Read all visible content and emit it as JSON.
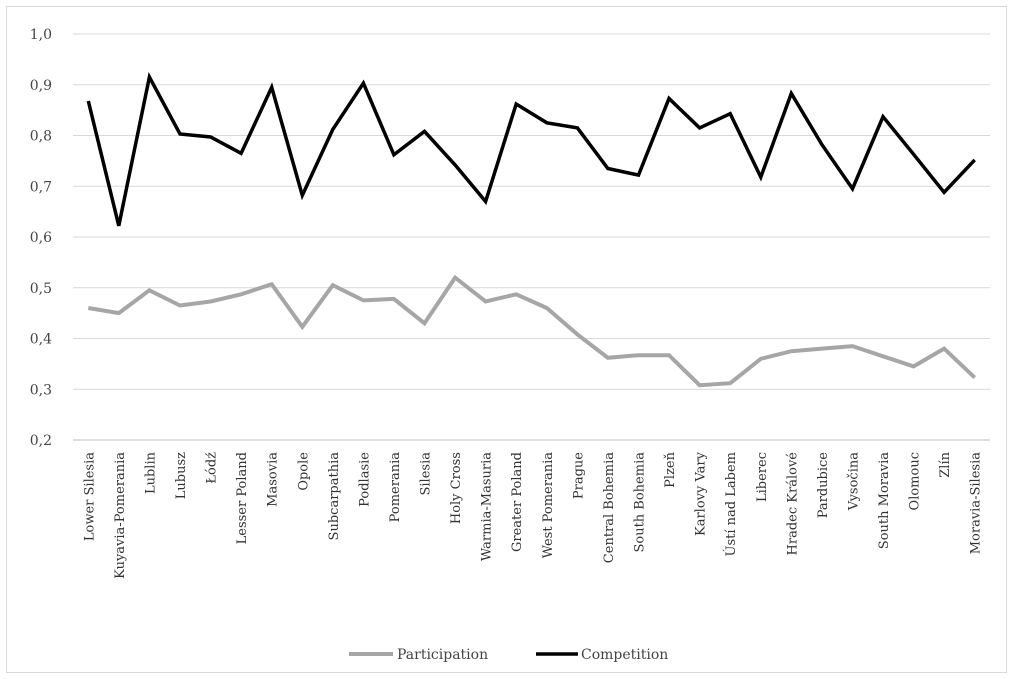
{
  "chart_data": {
    "type": "line",
    "title": "",
    "xlabel": "",
    "ylabel": "",
    "ylim": [
      0.2,
      1.0
    ],
    "yticks": [
      "0,2",
      "0,3",
      "0,4",
      "0,5",
      "0,6",
      "0,7",
      "0,8",
      "0,9",
      "1,0"
    ],
    "ytick_values": [
      0.2,
      0.3,
      0.4,
      0.5,
      0.6,
      0.7,
      0.8,
      0.9,
      1.0
    ],
    "grid": true,
    "legend_position": "bottom",
    "categories": [
      "Lower Silesia",
      "Kuyavia-Pomerania",
      "Lublin",
      "Lubusz",
      "Łódź",
      "Lesser Poland",
      "Masovia",
      "Opole",
      "Subcarpathia",
      "Podlasie",
      "Pomerania",
      "Silesia",
      "Holy Cross",
      "Warmia-Masuria",
      "Greater Poland",
      "West Pomerania",
      "Prague",
      "Central Bohemia",
      "South Bohemia",
      "Plzeň",
      "Karlovy Vary",
      "Ústí nad Labem",
      "Liberec",
      "Hradec Králové",
      "Pardubice",
      "Vysočina",
      "South Moravia",
      "Olomouc",
      "Zlín",
      "Moravia-Silesia"
    ],
    "series": [
      {
        "name": "Participation",
        "color": "#a6a6a6",
        "values": [
          0.46,
          0.45,
          0.495,
          0.465,
          0.473,
          0.487,
          0.507,
          0.423,
          0.505,
          0.475,
          0.478,
          0.43,
          0.52,
          0.473,
          0.487,
          0.46,
          0.408,
          0.362,
          0.367,
          0.367,
          0.308,
          0.312,
          0.36,
          0.375,
          0.38,
          0.385,
          0.365,
          0.345,
          0.38,
          0.323
        ]
      },
      {
        "name": "Competition",
        "color": "#000000",
        "values": [
          0.868,
          0.622,
          0.915,
          0.803,
          0.797,
          0.765,
          0.895,
          0.682,
          0.812,
          0.903,
          0.762,
          0.808,
          0.742,
          0.67,
          0.862,
          0.825,
          0.815,
          0.735,
          0.722,
          0.873,
          0.815,
          0.843,
          0.718,
          0.883,
          0.782,
          0.695,
          0.837,
          0.763,
          0.688,
          0.752
        ]
      }
    ]
  }
}
